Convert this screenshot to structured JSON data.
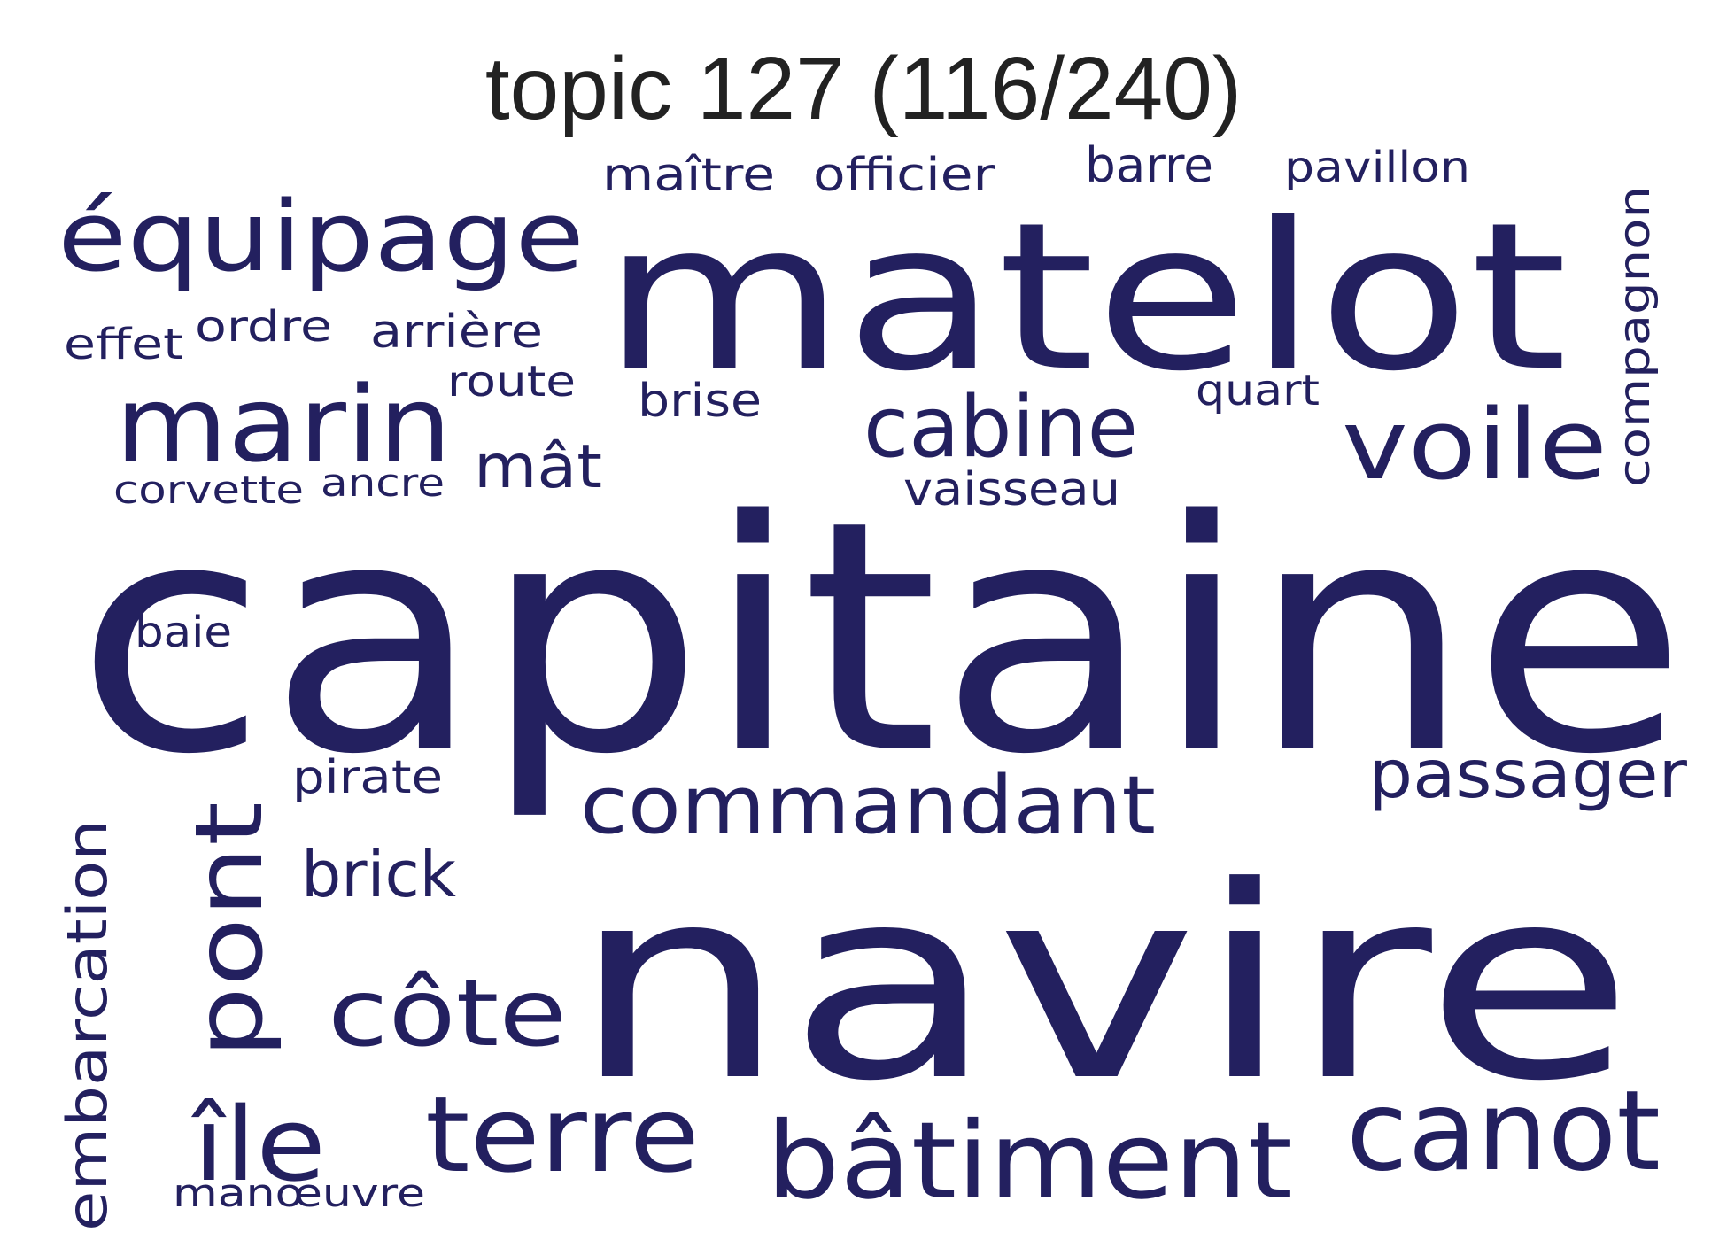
{
  "title": "topic 127 (116/240)",
  "color": "#23205f",
  "words": [
    "capitaine",
    "navire",
    "matelot",
    "équipage",
    "marin",
    "voile",
    "cabine",
    "commandant",
    "bâtiment",
    "canot",
    "terre",
    "côte",
    "pont",
    "île",
    "passager",
    "embarcation",
    "brick",
    "mât",
    "pirate",
    "vaisseau",
    "brise",
    "route",
    "arrière",
    "ordre",
    "effet",
    "maître",
    "officier",
    "barre",
    "pavillon",
    "quart",
    "compagnon",
    "corvette",
    "ancre",
    "baie",
    "manœuvre"
  ]
}
